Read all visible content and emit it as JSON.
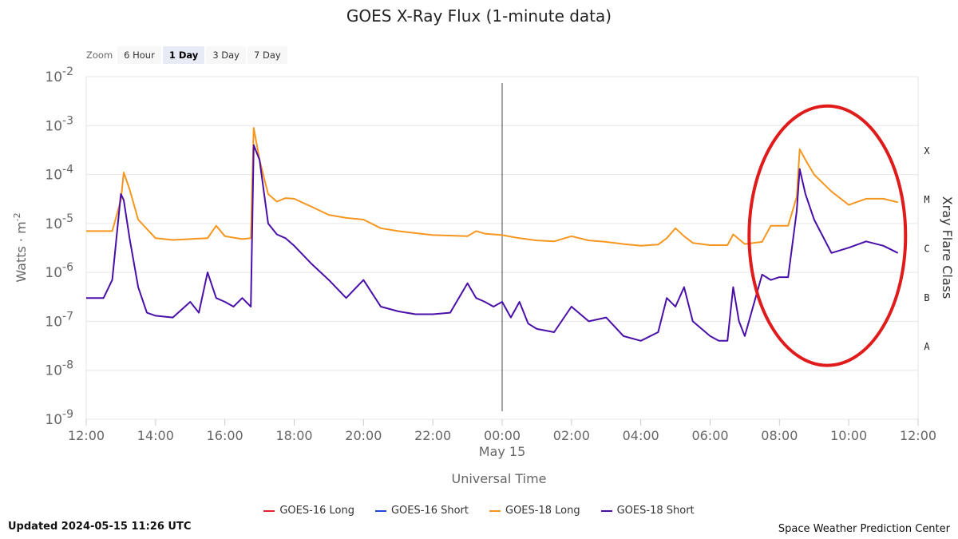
{
  "title": "GOES X-Ray Flux (1-minute data)",
  "zoom": {
    "label": "Zoom",
    "buttons": [
      "6 Hour",
      "1 Day",
      "3 Day",
      "7 Day"
    ],
    "active": "1 Day"
  },
  "legend": [
    {
      "name": "GOES-16 Long",
      "color": "#e3222a"
    },
    {
      "name": "GOES-16 Short",
      "color": "#2146d6"
    },
    {
      "name": "GOES-18 Long",
      "color": "#f5961e"
    },
    {
      "name": "GOES-18 Short",
      "color": "#4a0fa8"
    }
  ],
  "updated": "Updated 2024-05-15 11:26 UTC",
  "credit": "Space Weather Prediction Center",
  "annotation": {
    "shape": "ellipse",
    "color": "#e01b1b",
    "x_range": [
      "08:00",
      "11:30"
    ],
    "y_range_exp": [
      -7.9,
      -2.6
    ]
  },
  "chart_data": {
    "type": "line",
    "title": "GOES X-Ray Flux (1-minute data)",
    "xlabel": "Universal Time",
    "ylabel": "Watts · m",
    "ylabel_sup": "-2",
    "y2label": "Xray Flare Class",
    "y_scale": "log",
    "ylim": [
      1e-09,
      0.01
    ],
    "y_tick_base": "10",
    "y_tick_exponents": [
      "-2",
      "-3",
      "-4",
      "-5",
      "-6",
      "-7",
      "-8",
      "-9"
    ],
    "x_range": [
      "2024-05-14 12:00",
      "2024-05-15 12:00"
    ],
    "x_tick_labels": [
      "12:00",
      "14:00",
      "16:00",
      "18:00",
      "20:00",
      "22:00",
      "00:00",
      "02:00",
      "04:00",
      "06:00",
      "08:00",
      "10:00",
      "12:00"
    ],
    "x_date_label": "May 15",
    "midnight_marker": "2024-05-15 00:00",
    "flare_classes": [
      {
        "label": "X",
        "flux": 0.0001
      },
      {
        "label": "M",
        "flux": 1e-05
      },
      {
        "label": "C",
        "flux": 1e-06
      },
      {
        "label": "B",
        "flux": 1e-07
      },
      {
        "label": "A",
        "flux": 1e-08
      }
    ],
    "grid": true,
    "legend_position": "bottom",
    "series": [
      {
        "name": "GOES-18 Long",
        "color": "#f5961e",
        "x": [
          "12:00",
          "12:45",
          "13:00",
          "13:05",
          "13:15",
          "13:30",
          "14:00",
          "14:30",
          "15:00",
          "15:30",
          "15:45",
          "16:00",
          "16:30",
          "16:45",
          "16:50",
          "17:00",
          "17:15",
          "17:30",
          "17:45",
          "18:00",
          "18:30",
          "19:00",
          "19:30",
          "20:00",
          "20:30",
          "21:00",
          "22:00",
          "23:00",
          "23:15",
          "23:30",
          "00:00",
          "00:30",
          "01:00",
          "01:30",
          "02:00",
          "02:30",
          "03:00",
          "03:30",
          "04:00",
          "04:30",
          "04:45",
          "05:00",
          "05:15",
          "05:30",
          "06:00",
          "06:30",
          "06:40",
          "07:00",
          "07:30",
          "07:45",
          "08:00",
          "08:15",
          "08:30",
          "08:35",
          "08:45",
          "09:00",
          "09:30",
          "10:00",
          "10:30",
          "11:00",
          "11:25"
        ],
        "y": [
          7e-06,
          7e-06,
          3e-05,
          0.00011,
          5e-05,
          1.2e-05,
          5e-06,
          4.6e-06,
          4.8e-06,
          5e-06,
          9e-06,
          5.5e-06,
          4.8e-06,
          5e-06,
          0.0009,
          0.0002,
          4e-05,
          2.8e-05,
          3.3e-05,
          3.2e-05,
          2.2e-05,
          1.5e-05,
          1.3e-05,
          1.2e-05,
          8e-06,
          7e-06,
          5.8e-06,
          5.5e-06,
          7e-06,
          6.2e-06,
          5.8e-06,
          5e-06,
          4.5e-06,
          4.3e-06,
          5.5e-06,
          4.5e-06,
          4.2e-06,
          3.8e-06,
          3.5e-06,
          3.7e-06,
          5e-06,
          8e-06,
          5.5e-06,
          4e-06,
          3.6e-06,
          3.6e-06,
          6e-06,
          3.8e-06,
          4.2e-06,
          9e-06,
          9e-06,
          9e-06,
          3.5e-05,
          0.00033,
          0.0002,
          0.0001,
          4.5e-05,
          2.4e-05,
          3.2e-05,
          3.2e-05,
          2.7e-05
        ]
      },
      {
        "name": "GOES-18 Short",
        "color": "#4a0fa8",
        "x": [
          "12:00",
          "12:15",
          "12:30",
          "12:45",
          "13:00",
          "13:05",
          "13:15",
          "13:30",
          "13:45",
          "14:00",
          "14:30",
          "15:00",
          "15:15",
          "15:30",
          "15:45",
          "16:00",
          "16:15",
          "16:30",
          "16:45",
          "16:50",
          "17:00",
          "17:15",
          "17:30",
          "17:45",
          "18:00",
          "18:30",
          "19:00",
          "19:30",
          "20:00",
          "20:30",
          "21:00",
          "21:30",
          "22:00",
          "22:30",
          "23:00",
          "23:15",
          "23:30",
          "23:45",
          "00:00",
          "00:15",
          "00:30",
          "00:45",
          "01:00",
          "01:30",
          "02:00",
          "02:30",
          "03:00",
          "03:30",
          "04:00",
          "04:30",
          "04:45",
          "05:00",
          "05:15",
          "05:30",
          "06:00",
          "06:15",
          "06:30",
          "06:40",
          "06:50",
          "07:00",
          "07:30",
          "07:45",
          "08:00",
          "08:15",
          "08:30",
          "08:35",
          "08:45",
          "09:00",
          "09:30",
          "10:00",
          "10:30",
          "11:00",
          "11:25"
        ],
        "y": [
          3e-07,
          3e-07,
          3e-07,
          7e-07,
          4e-05,
          3e-05,
          5e-06,
          5e-07,
          1.5e-07,
          1.3e-07,
          1.2e-07,
          2.5e-07,
          1.5e-07,
          1e-06,
          3e-07,
          2.5e-07,
          2e-07,
          3e-07,
          2e-07,
          0.0004,
          0.0002,
          1e-05,
          6e-06,
          5e-06,
          3.5e-06,
          1.5e-06,
          7e-07,
          3e-07,
          7e-07,
          2e-07,
          1.6e-07,
          1.4e-07,
          1.4e-07,
          1.5e-07,
          6e-07,
          3e-07,
          2.5e-07,
          2e-07,
          2.5e-07,
          1.2e-07,
          2.5e-07,
          9e-08,
          7e-08,
          6e-08,
          2e-07,
          1e-07,
          1.2e-07,
          5e-08,
          4e-08,
          6e-08,
          3e-07,
          2e-07,
          5e-07,
          1e-07,
          5e-08,
          4e-08,
          4e-08,
          5e-07,
          1e-07,
          5e-08,
          9e-07,
          7e-07,
          8e-07,
          8e-07,
          1.8e-05,
          0.00013,
          4e-05,
          1.2e-05,
          2.5e-06,
          3.2e-06,
          4.3e-06,
          3.5e-06,
          2.5e-06
        ]
      }
    ]
  }
}
